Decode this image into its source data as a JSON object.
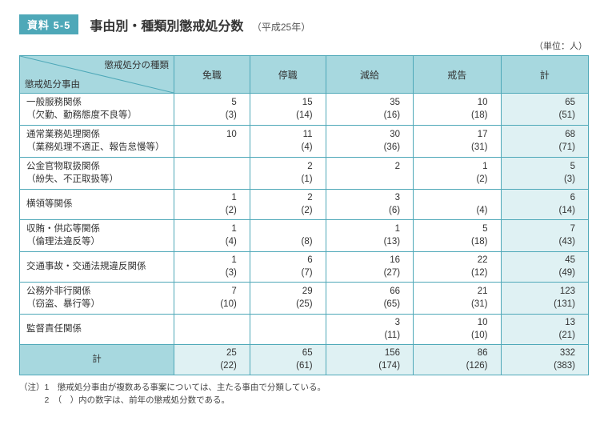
{
  "badge": "資料 5-5",
  "title": "事由別・種類別懲戒処分数",
  "subtitle": "（平成25年）",
  "unit": "（単位：人）",
  "diag_top": "懲戒処分の種類",
  "diag_bottom": "懲戒処分事由",
  "columns": [
    "免職",
    "停職",
    "減給",
    "戒告",
    "計"
  ],
  "rows": [
    {
      "label": "一般服務関係\n（欠勤、勤務態度不良等）",
      "cells": [
        {
          "v": "5",
          "p": "(3)"
        },
        {
          "v": "15",
          "p": "(14)"
        },
        {
          "v": "35",
          "p": "(16)"
        },
        {
          "v": "10",
          "p": "(18)"
        },
        {
          "v": "65",
          "p": "(51)"
        }
      ]
    },
    {
      "label": "通常業務処理関係\n（業務処理不適正、報告怠慢等）",
      "cells": [
        {
          "v": "10",
          "p": ""
        },
        {
          "v": "11",
          "p": "(4)"
        },
        {
          "v": "30",
          "p": "(36)"
        },
        {
          "v": "17",
          "p": "(31)"
        },
        {
          "v": "68",
          "p": "(71)"
        }
      ]
    },
    {
      "label": "公金官物取扱関係\n（紛失、不正取扱等）",
      "cells": [
        {
          "v": "",
          "p": ""
        },
        {
          "v": "2",
          "p": "(1)"
        },
        {
          "v": "2",
          "p": ""
        },
        {
          "v": "1",
          "p": "(2)"
        },
        {
          "v": "5",
          "p": "(3)"
        }
      ]
    },
    {
      "label": "横領等関係",
      "cells": [
        {
          "v": "1",
          "p": "(2)"
        },
        {
          "v": "2",
          "p": "(2)"
        },
        {
          "v": "3",
          "p": "(6)"
        },
        {
          "v": "",
          "p": "(4)"
        },
        {
          "v": "6",
          "p": "(14)"
        }
      ]
    },
    {
      "label": "収賄・供応等関係\n（倫理法違反等）",
      "cells": [
        {
          "v": "1",
          "p": "(4)"
        },
        {
          "v": "",
          "p": "(8)"
        },
        {
          "v": "1",
          "p": "(13)"
        },
        {
          "v": "5",
          "p": "(18)"
        },
        {
          "v": "7",
          "p": "(43)"
        }
      ]
    },
    {
      "label": "交通事故・交通法規違反関係",
      "cells": [
        {
          "v": "1",
          "p": "(3)"
        },
        {
          "v": "6",
          "p": "(7)"
        },
        {
          "v": "16",
          "p": "(27)"
        },
        {
          "v": "22",
          "p": "(12)"
        },
        {
          "v": "45",
          "p": "(49)"
        }
      ]
    },
    {
      "label": "公務外非行関係\n（窃盗、暴行等）",
      "cells": [
        {
          "v": "7",
          "p": "(10)"
        },
        {
          "v": "29",
          "p": "(25)"
        },
        {
          "v": "66",
          "p": "(65)"
        },
        {
          "v": "21",
          "p": "(31)"
        },
        {
          "v": "123",
          "p": "(131)"
        }
      ]
    },
    {
      "label": "監督責任関係",
      "cells": [
        {
          "v": "",
          "p": ""
        },
        {
          "v": "",
          "p": ""
        },
        {
          "v": "3",
          "p": "(11)"
        },
        {
          "v": "10",
          "p": "(10)"
        },
        {
          "v": "13",
          "p": "(21)"
        }
      ]
    }
  ],
  "total": {
    "label": "計",
    "cells": [
      {
        "v": "25",
        "p": "(22)"
      },
      {
        "v": "65",
        "p": "(61)"
      },
      {
        "v": "156",
        "p": "(174)"
      },
      {
        "v": "86",
        "p": "(126)"
      },
      {
        "v": "332",
        "p": "(383)"
      }
    ]
  },
  "notes": [
    "（注）1　懲戒処分事由が複数ある事案については、主たる事由で分類している。",
    "　　　2　（　）内の数字は、前年の懲戒処分数である。"
  ],
  "colors": {
    "border": "#4ea8b8",
    "head_bg": "#a7d8df",
    "tot_bg": "#dff1f3"
  }
}
